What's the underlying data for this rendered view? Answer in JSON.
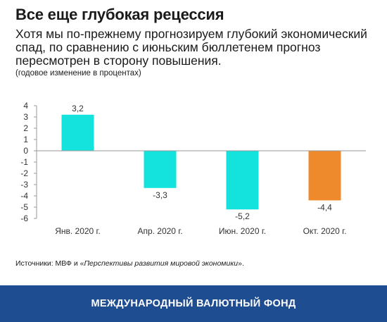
{
  "header": {
    "title": "Все еще глубокая рецессия",
    "subtitle": "Хотя мы по-прежнему прогнозируем глубокий экономический спад, по сравнению с июньским бюллетенем прогноз пересмотрен в сторону повышения.",
    "units": "(годовое изменение в процентах)"
  },
  "chart_data": {
    "type": "bar",
    "categories": [
      "Янв. 2020 г.",
      "Апр. 2020 г.",
      "Июн. 2020 г.",
      "Окт. 2020 г."
    ],
    "values": [
      3.2,
      -3.3,
      -5.2,
      -4.4
    ],
    "value_labels": [
      "3,2",
      "-3,3",
      "-5,2",
      "-4,4"
    ],
    "bar_colors": [
      "#14e3dd",
      "#14e3dd",
      "#14e3dd",
      "#ee8a2c"
    ],
    "ylim": [
      -6,
      4
    ],
    "y_ticks": [
      4,
      3,
      2,
      1,
      0,
      -1,
      -2,
      -3,
      -4,
      -5,
      -6
    ],
    "y_tick_labels": [
      "4",
      "3",
      "2",
      "1",
      "0",
      "-1",
      "-2",
      "-3",
      "-4",
      "-5",
      "-6"
    ],
    "grid": false,
    "xlabel": "",
    "ylabel": ""
  },
  "source": {
    "prefix": "Источники: МВФ и «",
    "italic": "Перспективы развития мировой экономики",
    "suffix": "»."
  },
  "footer": {
    "text": "МЕЖДУНАРОДНЫЙ ВАЛЮТНЫЙ ФОНД",
    "background": "#1f4d92"
  }
}
